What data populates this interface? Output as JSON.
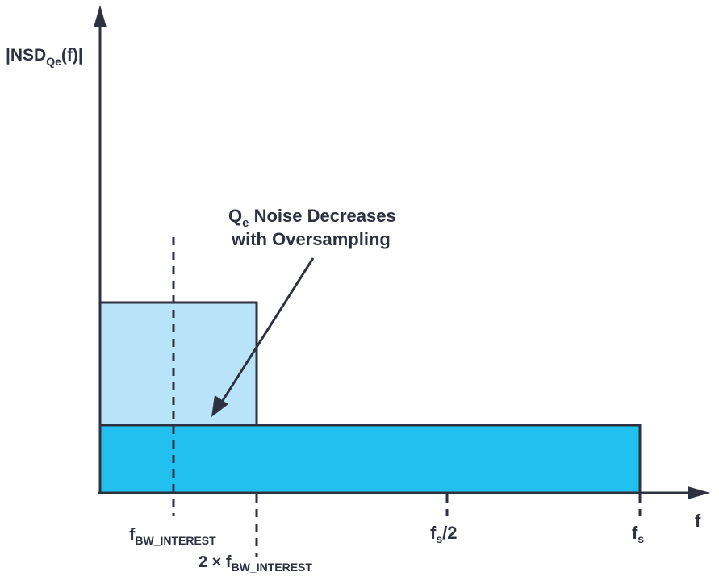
{
  "y_axis": {
    "main": "|NSD",
    "sub": "Qe",
    "tail": "(f)|"
  },
  "x_axis": {
    "label": "f"
  },
  "annotation": {
    "line1_main": "Q",
    "line1_sub": "e",
    "line1_tail": " Noise Decreases",
    "line2": "with Oversampling"
  },
  "ticks": {
    "f_bw": {
      "main": "f",
      "sub": "BW_INTEREST"
    },
    "two_f_bw": {
      "prefix": "2 × f",
      "sub": "BW_INTEREST"
    },
    "fs_half": {
      "main": "f",
      "sub": "s",
      "tail": "/2"
    },
    "fs": {
      "main": "f",
      "sub": "s"
    }
  },
  "colors": {
    "axis": "#2e3140",
    "noise_before": "#b8e3f8",
    "noise_after": "#21c0ee"
  }
}
